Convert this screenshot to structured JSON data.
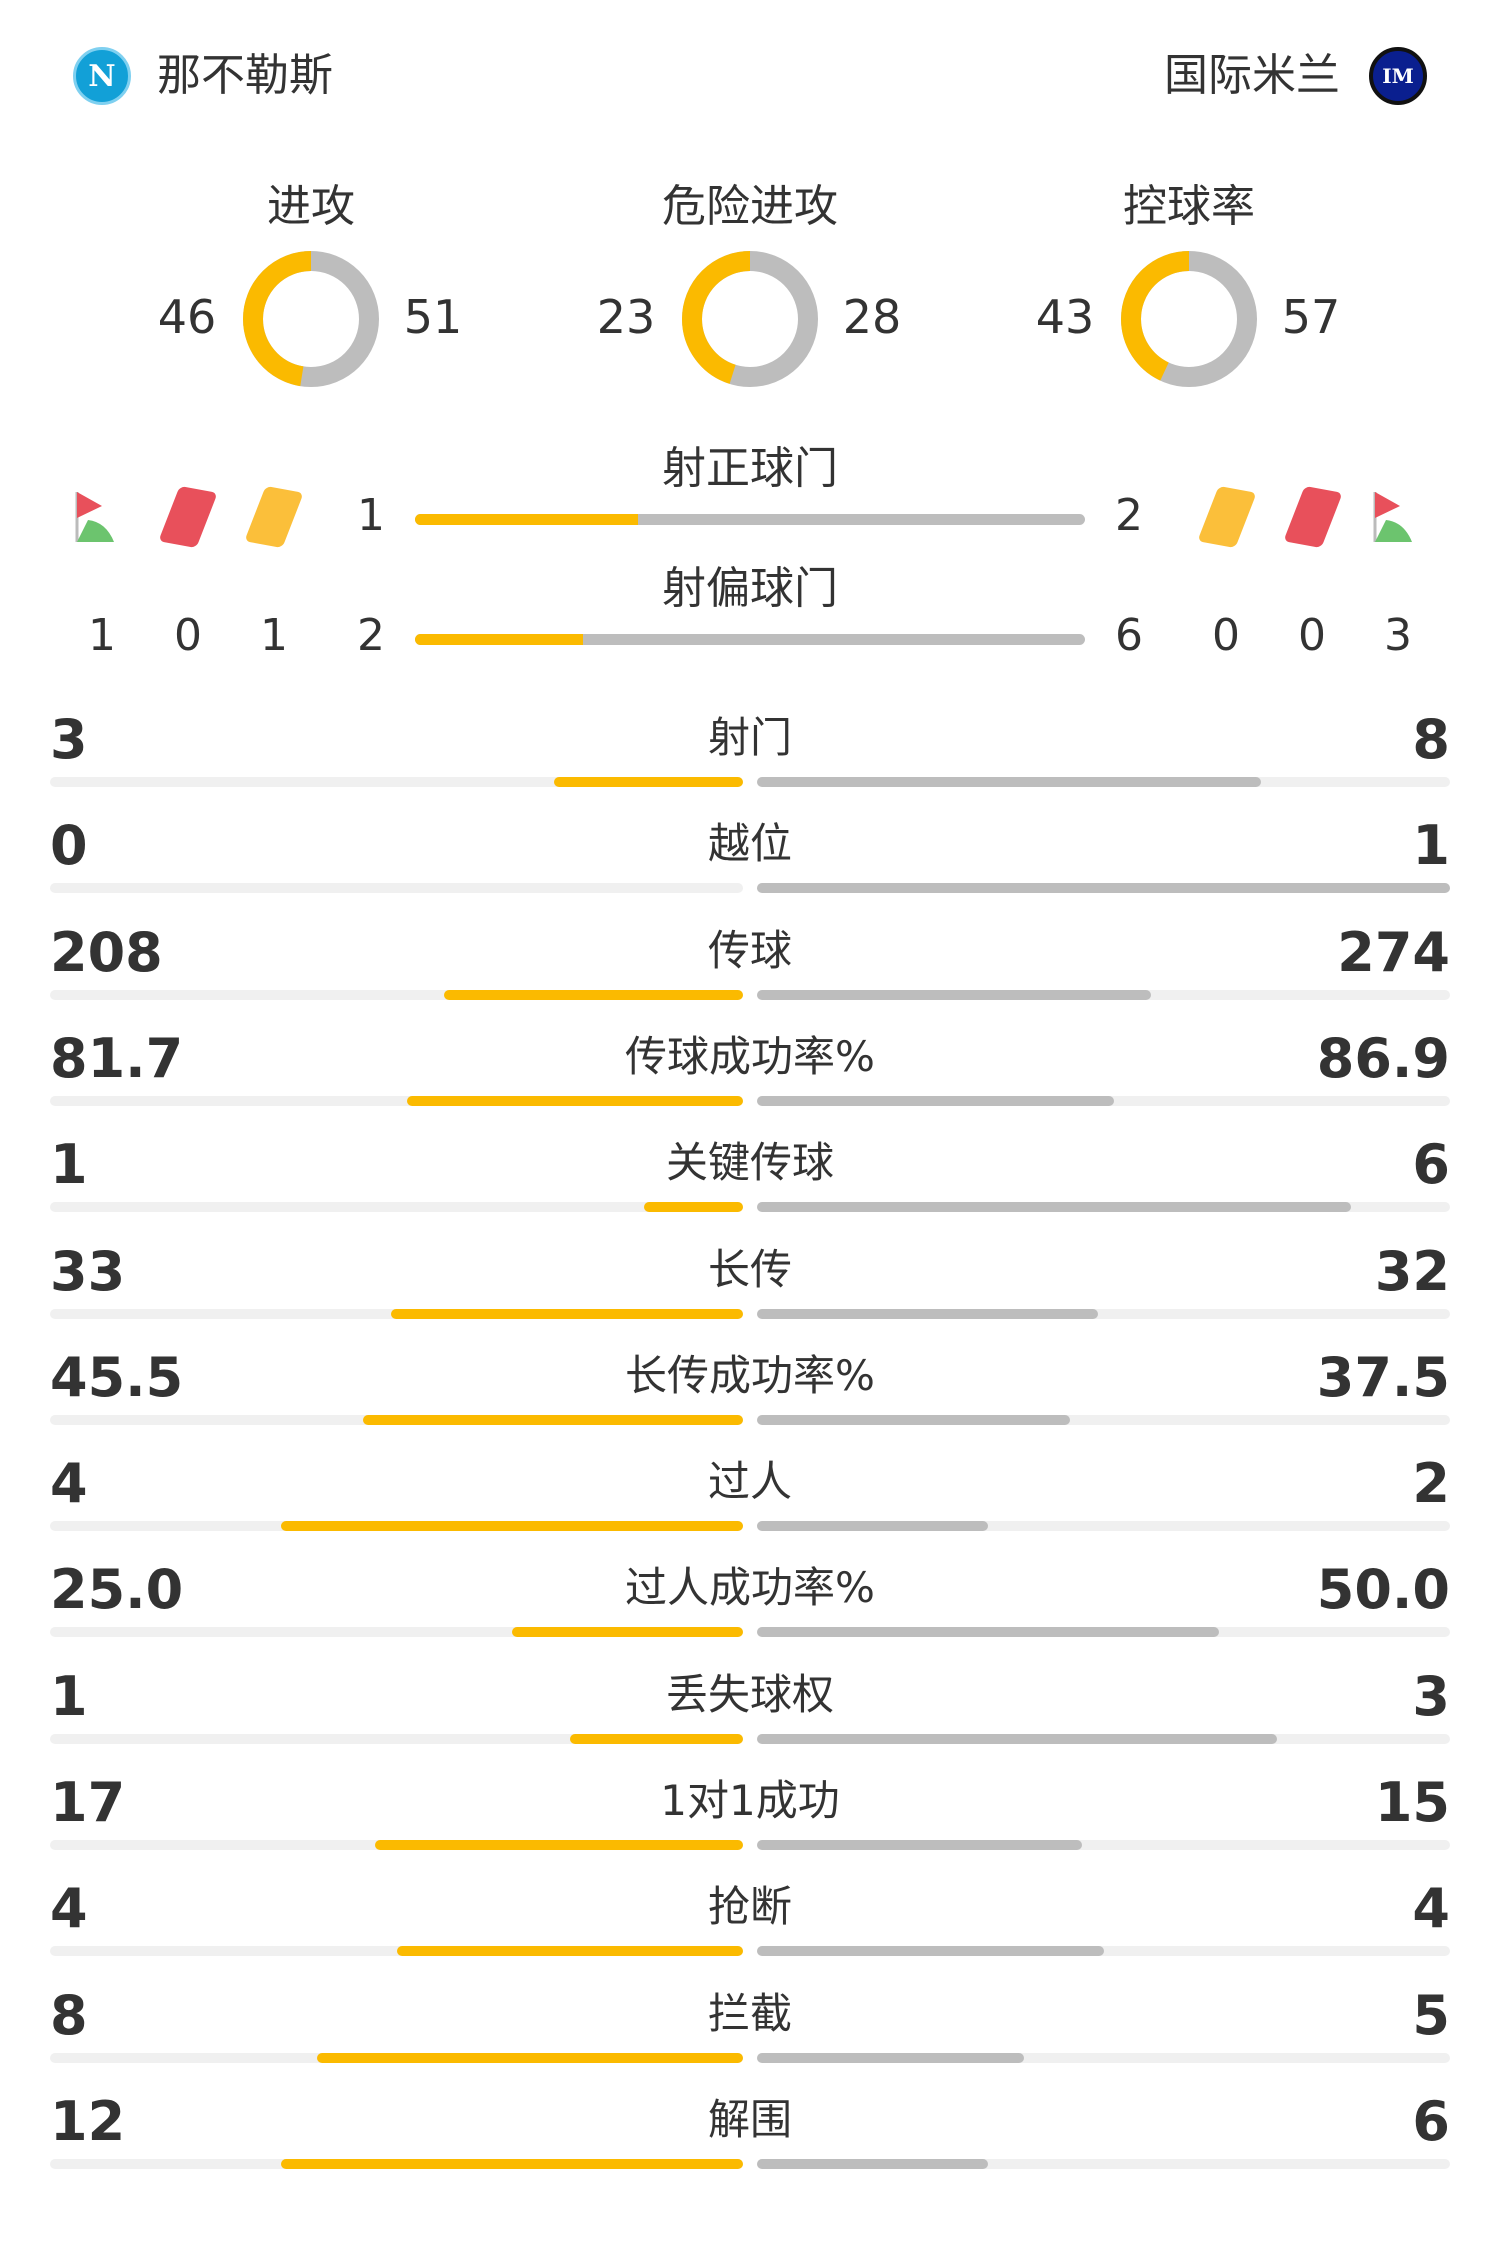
{
  "home": {
    "name": "那不勒斯",
    "logo_letter": "N",
    "color": "#12A0D7"
  },
  "away": {
    "name": "国际米兰",
    "logo_letter": "IM",
    "color": "#0A1F8F"
  },
  "colors": {
    "home": "#FBBA00",
    "away": "#BDBDBD",
    "track": "#F0F0F0"
  },
  "donuts": [
    {
      "label": "进攻",
      "home": 46,
      "away": 51
    },
    {
      "label": "危险进攻",
      "home": 23,
      "away": 28
    },
    {
      "label": "控球率",
      "home": 43,
      "away": 57
    }
  ],
  "shots_on": {
    "label": "射正球门",
    "home": 1,
    "away": 2
  },
  "shots_off": {
    "label": "射偏球门",
    "home": 2,
    "away": 6
  },
  "home_counts": {
    "corners": 1,
    "red_cards": 0,
    "yellow_cards": 1
  },
  "away_counts": {
    "corners": 3,
    "red_cards": 0,
    "yellow_cards": 0
  },
  "icons": [
    "corner-flag-icon",
    "red-card-icon",
    "yellow-card-icon"
  ],
  "stats": [
    {
      "label": "射门",
      "home": "3",
      "away": "8"
    },
    {
      "label": "越位",
      "home": "0",
      "away": "1"
    },
    {
      "label": "传球",
      "home": "208",
      "away": "274"
    },
    {
      "label": "传球成功率%",
      "home": "81.7",
      "away": "86.9"
    },
    {
      "label": "关键传球",
      "home": "1",
      "away": "6"
    },
    {
      "label": "长传",
      "home": "33",
      "away": "32"
    },
    {
      "label": "长传成功率%",
      "home": "45.5",
      "away": "37.5"
    },
    {
      "label": "过人",
      "home": "4",
      "away": "2"
    },
    {
      "label": "过人成功率%",
      "home": "25.0",
      "away": "50.0"
    },
    {
      "label": "丢失球权",
      "home": "1",
      "away": "3"
    },
    {
      "label": "1对1成功",
      "home": "17",
      "away": "15"
    },
    {
      "label": "抢断",
      "home": "4",
      "away": "4"
    },
    {
      "label": "拦截",
      "home": "8",
      "away": "5"
    },
    {
      "label": "解围",
      "home": "12",
      "away": "6"
    }
  ]
}
